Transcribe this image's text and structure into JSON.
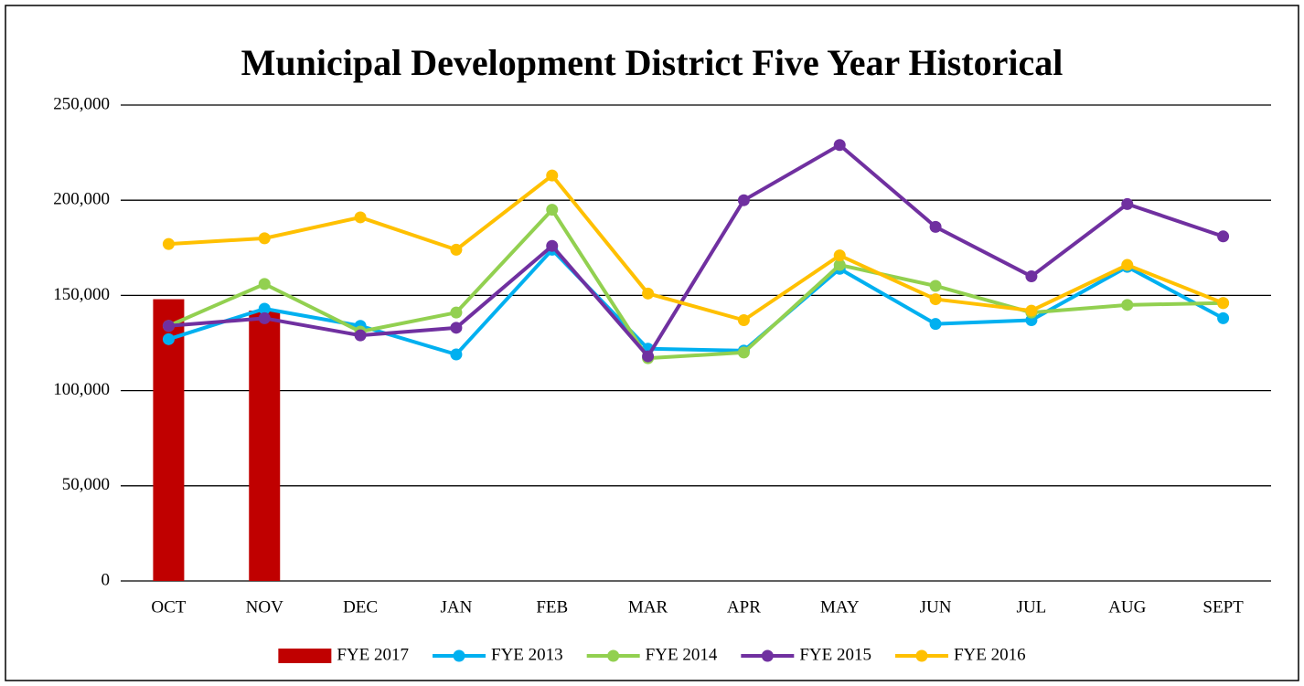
{
  "chart_data": {
    "type": "line",
    "title": "Municipal Development District Five Year Historical",
    "categories": [
      "OCT",
      "NOV",
      "DEC",
      "JAN",
      "FEB",
      "MAR",
      "APR",
      "MAY",
      "JUN",
      "JUL",
      "AUG",
      "SEPT"
    ],
    "series": [
      {
        "name": "FYE 2017",
        "type": "bar",
        "color": "#c00000",
        "values": [
          148000,
          142000,
          null,
          null,
          null,
          null,
          null,
          null,
          null,
          null,
          null,
          null
        ]
      },
      {
        "name": "FYE 2013",
        "type": "line",
        "color": "#00b0f0",
        "values": [
          127000,
          143000,
          134000,
          119000,
          174000,
          122000,
          121000,
          164000,
          135000,
          137000,
          165000,
          138000
        ]
      },
      {
        "name": "FYE 2014",
        "type": "line",
        "color": "#92d050",
        "values": [
          134000,
          156000,
          131000,
          141000,
          195000,
          117000,
          120000,
          166000,
          155000,
          141000,
          145000,
          146000
        ]
      },
      {
        "name": "FYE 2015",
        "type": "line",
        "color": "#7030a0",
        "values": [
          134000,
          138000,
          129000,
          133000,
          176000,
          118000,
          200000,
          229000,
          186000,
          160000,
          198000,
          181000
        ]
      },
      {
        "name": "FYE 2016",
        "type": "line",
        "color": "#ffc000",
        "values": [
          177000,
          180000,
          191000,
          174000,
          213000,
          151000,
          137000,
          171000,
          148000,
          142000,
          166000,
          146000
        ]
      }
    ],
    "ylim": [
      0,
      250000
    ],
    "yticks": [
      0,
      {
        "value": 50000,
        "label": "50,000"
      },
      {
        "value": 100000,
        "label": "100,000"
      },
      {
        "value": 150000,
        "label": "150,000"
      },
      {
        "value": 200000,
        "label": "200,000"
      },
      {
        "value": 250000,
        "label": "250,000"
      }
    ],
    "grid": true,
    "legend": "bottom"
  }
}
